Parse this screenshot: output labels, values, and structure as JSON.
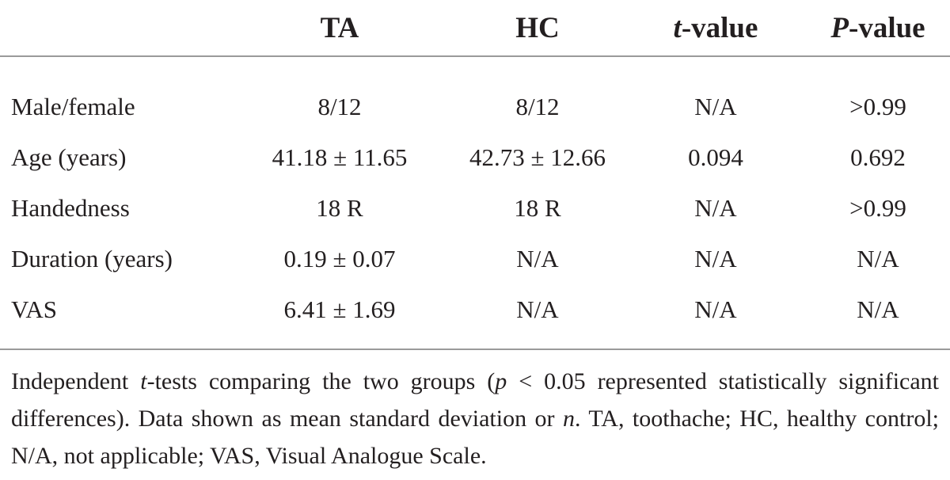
{
  "table": {
    "headers": {
      "ta": "TA",
      "hc": "HC",
      "t_italic": "t",
      "t_rest": "-value",
      "p_italic": "P",
      "p_rest": "-value"
    },
    "rows": [
      {
        "label": "Male/female",
        "ta": "8/12",
        "hc": "8/12",
        "t": "N/A",
        "p": ">0.99"
      },
      {
        "label": "Age (years)",
        "ta": "41.18 ± 11.65",
        "hc": "42.73 ± 12.66",
        "t": "0.094",
        "p": "0.692"
      },
      {
        "label": "Handedness",
        "ta": "18 R",
        "hc": "18 R",
        "t": "N/A",
        "p": ">0.99"
      },
      {
        "label": "Duration (years)",
        "ta": "0.19 ± 0.07",
        "hc": "N/A",
        "t": "N/A",
        "p": "N/A"
      },
      {
        "label": "VAS",
        "ta": "6.41 ± 1.69",
        "hc": "N/A",
        "t": "N/A",
        "p": "N/A"
      }
    ]
  },
  "footnote": {
    "part1": "Independent ",
    "t_italic": "t",
    "part2": "-tests comparing the two groups (",
    "p_italic": "p",
    "part3": " < 0.05 represented statistically significant differences). Data shown as mean standard deviation or ",
    "n_italic": "n",
    "part4": ". TA, toothache; HC, healthy control; N/A, not applicable; VAS, Visual Analogue Scale."
  }
}
